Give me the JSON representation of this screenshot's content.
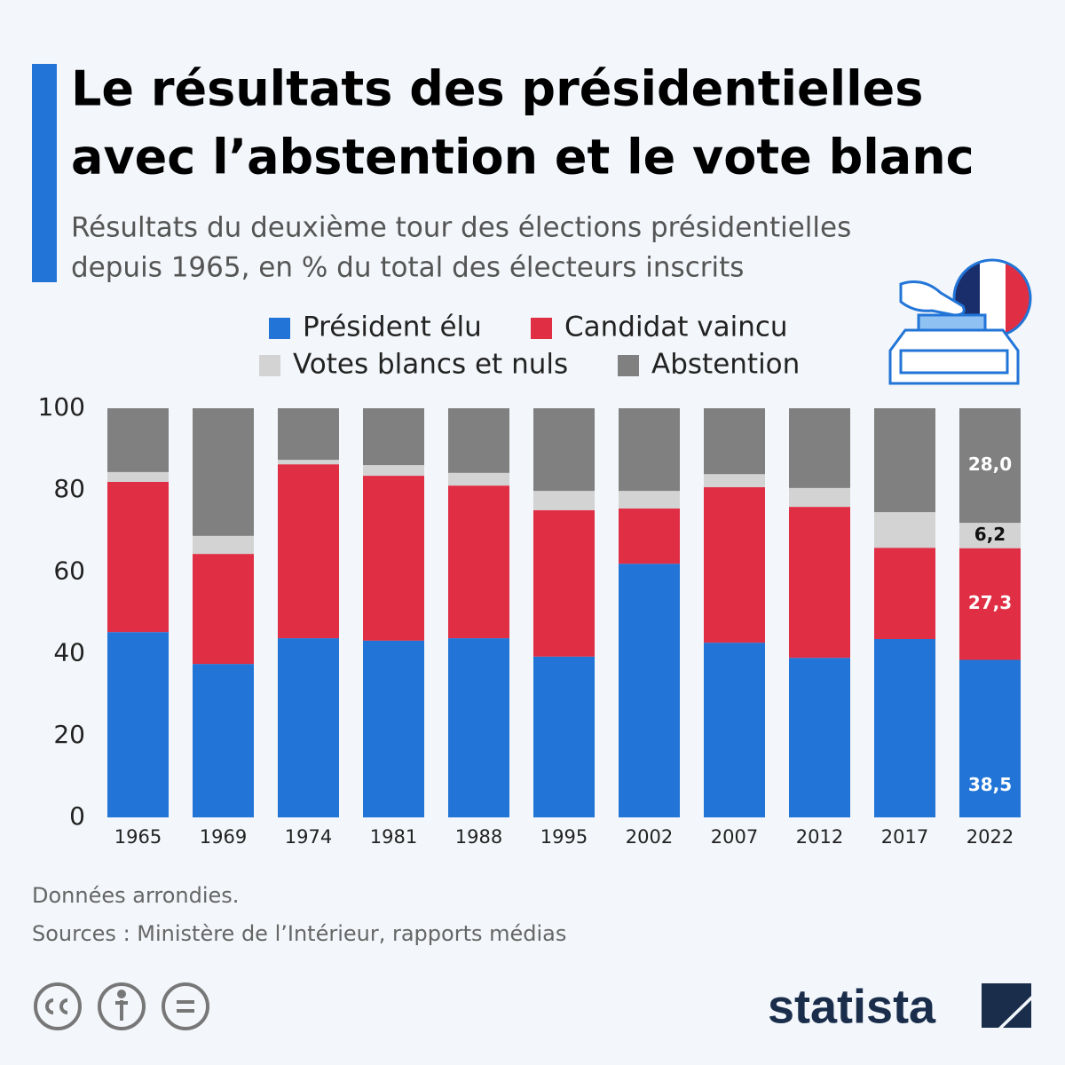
{
  "chart_data": {
    "type": "stacked_bar",
    "title": [
      "Le résultats des présidentielles",
      "avec l’abstention et le vote blanc"
    ],
    "subtitle": [
      "Résultats du deuxième tour des élections présidentielles",
      "depuis 1965, en % du total des électeurs inscrits"
    ],
    "categories": [
      "1965",
      "1969",
      "1974",
      "1981",
      "1988",
      "1995",
      "2002",
      "2007",
      "2012",
      "2017",
      "2022"
    ],
    "series": [
      {
        "name": "Président élu",
        "color": "#2275d7",
        "values": [
          45.3,
          37.5,
          43.8,
          43.2,
          43.8,
          39.3,
          62.0,
          42.7,
          39.0,
          43.6,
          38.5
        ],
        "value_labels": [
          null,
          null,
          null,
          null,
          null,
          null,
          null,
          null,
          null,
          null,
          "38,5"
        ]
      },
      {
        "name": "Candidat vaincu",
        "color": "#e02e45",
        "values": [
          36.7,
          26.9,
          42.5,
          40.3,
          37.3,
          35.8,
          13.5,
          38.0,
          36.9,
          22.3,
          27.3
        ],
        "value_labels": [
          null,
          null,
          null,
          null,
          null,
          null,
          null,
          null,
          null,
          null,
          "27,3"
        ]
      },
      {
        "name": "Votes blancs et nuls",
        "color": "#d3d3d3",
        "values": [
          2.4,
          4.4,
          1.1,
          2.6,
          3.1,
          4.7,
          4.3,
          3.2,
          4.6,
          8.7,
          6.2
        ],
        "value_labels": [
          null,
          null,
          null,
          null,
          null,
          null,
          null,
          null,
          null,
          null,
          "6,2"
        ]
      },
      {
        "name": "Abstention",
        "color": "#808080",
        "values": [
          15.6,
          31.2,
          12.6,
          13.9,
          15.8,
          20.2,
          20.2,
          16.1,
          19.5,
          25.4,
          28.0
        ],
        "value_labels": [
          null,
          null,
          null,
          null,
          null,
          null,
          null,
          null,
          null,
          null,
          "28,0"
        ]
      }
    ],
    "ylim": [
      0,
      100
    ],
    "yticks": [
      0,
      20,
      40,
      60,
      80,
      100
    ],
    "grid": false,
    "notes": [
      "Données arrondies.",
      "Sources : Ministère de l’Intérieur, rapports médias"
    ],
    "brand": "statista"
  }
}
